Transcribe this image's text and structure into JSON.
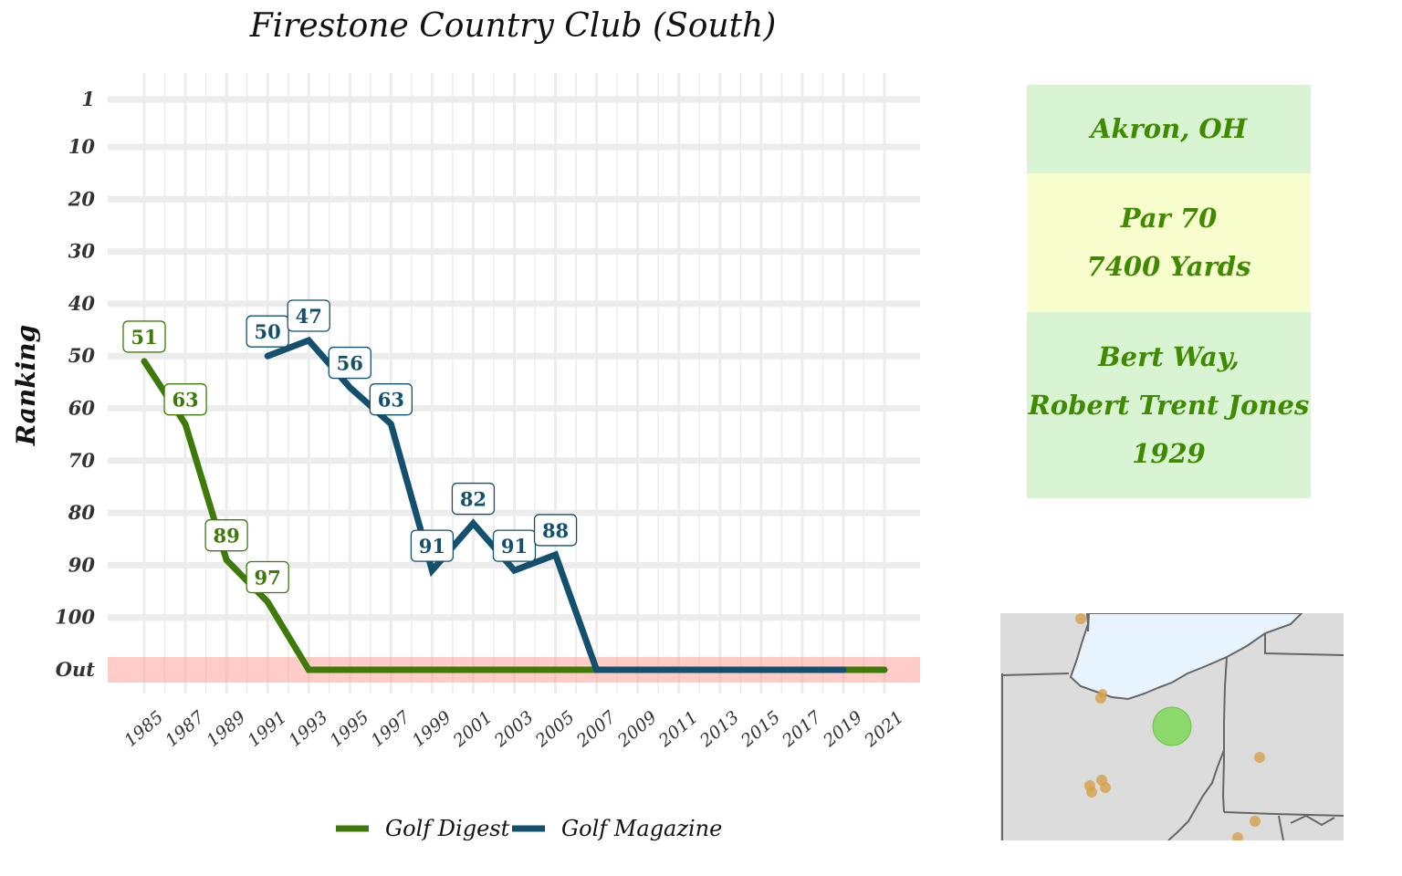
{
  "chart_data": {
    "type": "line",
    "title": "Firestone Country Club (South)",
    "ylabel": "Ranking",
    "xlabel": "",
    "y_ticks": [
      "1",
      "10",
      "20",
      "30",
      "40",
      "50",
      "60",
      "70",
      "80",
      "90",
      "100",
      "Out"
    ],
    "y_tick_values": [
      1,
      10,
      20,
      30,
      40,
      50,
      60,
      70,
      80,
      90,
      100,
      110
    ],
    "ylim": [
      1,
      110
    ],
    "y_reversed": true,
    "out_value": 110,
    "x_ticks": [
      "1985",
      "1987",
      "1989",
      "1991",
      "1993",
      "1995",
      "1997",
      "1999",
      "2001",
      "2003",
      "2005",
      "2007",
      "2009",
      "2011",
      "2013",
      "2015",
      "2017",
      "2019",
      "2021"
    ],
    "xlim": [
      1985,
      2021
    ],
    "grid": true,
    "legend_position": "bottom",
    "series": [
      {
        "name": "Golf Digest",
        "color": "#3d7a0a",
        "points": [
          {
            "x": 1985,
            "y": 51,
            "label": "51"
          },
          {
            "x": 1987,
            "y": 63,
            "label": "63"
          },
          {
            "x": 1989,
            "y": 89,
            "label": "89"
          },
          {
            "x": 1991,
            "y": 97,
            "label": "97"
          },
          {
            "x": 1993,
            "y": 110
          },
          {
            "x": 2021,
            "y": 110
          }
        ]
      },
      {
        "name": "Golf Magazine",
        "color": "#13506e",
        "points": [
          {
            "x": 1991,
            "y": 50,
            "label": "50"
          },
          {
            "x": 1993,
            "y": 47,
            "label": "47"
          },
          {
            "x": 1995,
            "y": 56,
            "label": "56"
          },
          {
            "x": 1997,
            "y": 63,
            "label": "63"
          },
          {
            "x": 1999,
            "y": 91,
            "label": "91"
          },
          {
            "x": 2001,
            "y": 82,
            "label": "82"
          },
          {
            "x": 2003,
            "y": 91,
            "label": "91"
          },
          {
            "x": 2005,
            "y": 88,
            "label": "88"
          },
          {
            "x": 2007,
            "y": 110
          },
          {
            "x": 2019,
            "y": 110
          }
        ]
      }
    ]
  },
  "info": {
    "location": "Akron, OH",
    "par": "Par 70",
    "yards": "7400 Yards",
    "designer_1": "Bert Way,",
    "designer_2": "Robert Trent Jones",
    "year": "1929"
  },
  "map": {
    "land_color": "#dcdcdc",
    "water_color": "#e8f4fd",
    "border_color": "#666666",
    "highlight_color": "#7ed957",
    "other_color": "#d4a04a"
  }
}
